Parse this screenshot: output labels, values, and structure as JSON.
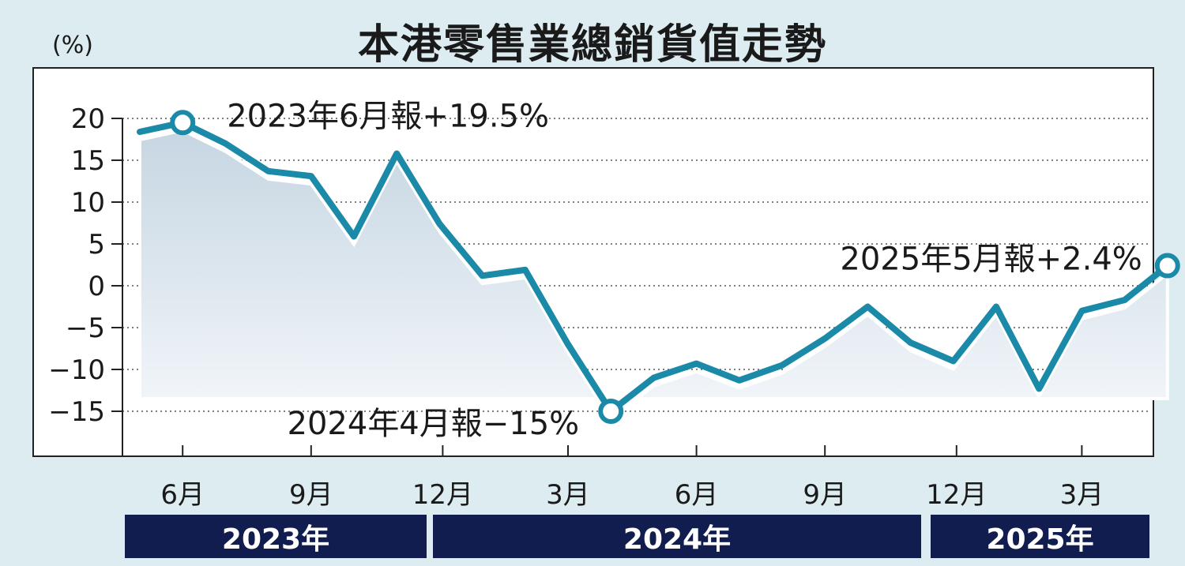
{
  "chart_data": {
    "type": "line",
    "title": "本港零售業總銷貨值走勢",
    "ylabel": "(%)",
    "ylim": [
      -20,
      20
    ],
    "yticks": [
      20,
      15,
      10,
      5,
      0,
      -5,
      -10,
      -15
    ],
    "ytick_labels": [
      "20",
      "15",
      "10",
      "5",
      "0",
      "−5",
      "−10",
      "−15"
    ],
    "x": [
      "2023-05",
      "2023-06",
      "2023-07",
      "2023-08",
      "2023-09",
      "2023-10",
      "2023-11",
      "2023-12",
      "2024-01",
      "2024-02",
      "2024-03",
      "2024-04",
      "2024-05",
      "2024-06",
      "2024-07",
      "2024-08",
      "2024-09",
      "2024-10",
      "2024-11",
      "2024-12",
      "2025-01",
      "2025-02",
      "2025-03",
      "2025-04",
      "2025-05"
    ],
    "xticks": [
      {
        "x": "2023-06",
        "label": "6月"
      },
      {
        "x": "2023-09",
        "label": "9月"
      },
      {
        "x": "2023-12",
        "label": "12月"
      },
      {
        "x": "2024-03",
        "label": "3月"
      },
      {
        "x": "2024-06",
        "label": "6月"
      },
      {
        "x": "2024-09",
        "label": "9月"
      },
      {
        "x": "2024-12",
        "label": "12月"
      },
      {
        "x": "2025-03",
        "label": "3月"
      }
    ],
    "series": [
      {
        "values": [
          18.4,
          19.5,
          17.0,
          13.7,
          13.1,
          5.9,
          15.8,
          7.4,
          1.2,
          1.9,
          -7.0,
          -15.0,
          -11.0,
          -9.3,
          -11.3,
          -9.5,
          -6.3,
          -2.5,
          -6.8,
          -9.0,
          -2.5,
          -12.3,
          -3.0,
          -1.7,
          2.4
        ],
        "color": "#1a8aa8"
      }
    ],
    "annotations": [
      {
        "x": "2023-06",
        "text": "2023年6月報+19.5%"
      },
      {
        "x": "2024-04",
        "text": "2024年4月報−15%"
      },
      {
        "x": "2025-05",
        "text": "2025年5月報+2.4%"
      }
    ],
    "years": [
      {
        "label": "2023年",
        "from": "2023-05",
        "to": "2023-12"
      },
      {
        "label": "2024年",
        "from": "2024-01",
        "to": "2024-12"
      },
      {
        "label": "2025年",
        "from": "2025-01",
        "to": "2025-05"
      }
    ],
    "grid": true,
    "area_fill": true
  }
}
